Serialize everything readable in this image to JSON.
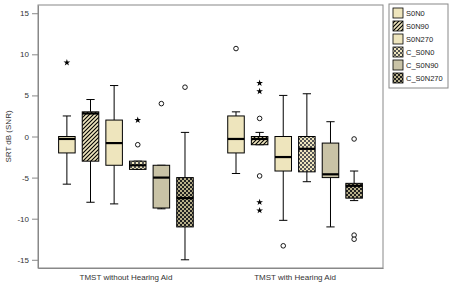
{
  "chart_data": {
    "type": "box",
    "y_label": "SRT dB (SNR)",
    "categories": [
      "TMST without Hearing Aid",
      "TMST with Hearing Aid"
    ],
    "ylim": [
      -16,
      16
    ],
    "yticks": [
      -15,
      -10,
      -5,
      0,
      5,
      10,
      15
    ],
    "grid": false,
    "legend": "top-right",
    "series": [
      {
        "name": "S0N0",
        "color": "#eee5bd",
        "min": [
          -5.8,
          -4.5
        ],
        "q1": [
          -2,
          -2
        ],
        "median": [
          -0.3,
          -0.3
        ],
        "q3": [
          0,
          2.5
        ],
        "max": [
          2.5,
          3
        ],
        "outliers": [
          [],
          [
            10.7
          ]
        ],
        "extremes": [
          [
            9
          ],
          []
        ]
      },
      {
        "name": "S0N90",
        "color": "#eee5bd",
        "min": [
          -8,
          -1
        ],
        "q1": [
          -3,
          -1
        ],
        "median": [
          2.8,
          -0.3
        ],
        "q3": [
          3,
          0
        ],
        "max": [
          4.5,
          0.5
        ],
        "outliers": [
          [],
          [
            2.2,
            -4.8
          ]
        ],
        "extremes": [
          [],
          [
            6.5,
            5.5,
            -8,
            -9
          ]
        ]
      },
      {
        "name": "S0N270",
        "color": "#eee5bd",
        "min": [
          -8.2,
          -10.2
        ],
        "q1": [
          -3.5,
          -4.2
        ],
        "median": [
          -0.8,
          -2.5
        ],
        "q3": [
          2,
          0
        ],
        "max": [
          6.2,
          5
        ],
        "outliers": [
          [],
          [
            -13.3
          ]
        ],
        "extremes": [
          [],
          []
        ]
      },
      {
        "name": "C_S0N0",
        "color": "#eee5bd",
        "min": [
          -4,
          -5.5
        ],
        "q1": [
          -4,
          -4.3
        ],
        "median": [
          -3.5,
          -1.5
        ],
        "q3": [
          -3,
          0
        ],
        "max": [
          -3,
          5.2
        ],
        "outliers": [
          [
            -1
          ],
          []
        ],
        "extremes": [
          [
            2
          ],
          []
        ]
      },
      {
        "name": "C_S0N90",
        "color": "#c9c3a6",
        "min": [
          -8.8,
          -11
        ],
        "q1": [
          -8.7,
          -5
        ],
        "median": [
          -5,
          -4.6
        ],
        "q3": [
          -3.5,
          -0.8
        ],
        "max": [
          -3.5,
          1.8
        ],
        "outliers": [
          [
            4
          ],
          []
        ],
        "extremes": [
          [],
          []
        ]
      },
      {
        "name": "C_S0N270",
        "color": "#b8b08a",
        "min": [
          -15,
          -7.8
        ],
        "q1": [
          -11,
          -7.5
        ],
        "median": [
          -7.5,
          -6
        ],
        "q3": [
          -5,
          -5.7
        ],
        "max": [
          0.5,
          -4.2
        ],
        "outliers": [
          [
            6
          ],
          [
            -0.3,
            -12,
            -12.5
          ]
        ],
        "extremes": [
          [],
          []
        ]
      }
    ]
  }
}
